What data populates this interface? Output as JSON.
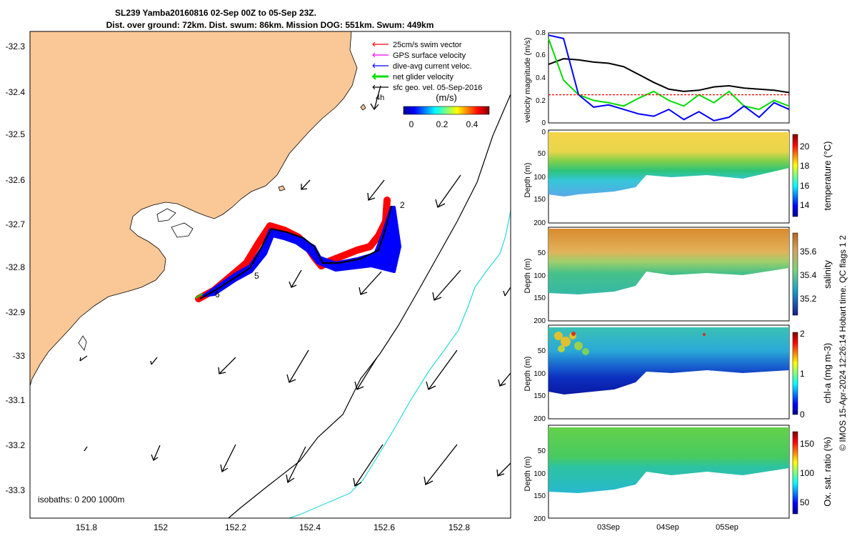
{
  "title": {
    "line1": "SL239 Yamba20160816 02-Sep 00Z to 05-Sep 23Z.",
    "line2": "Dist. over ground: 72km. Dist. swum: 86km. Mission DOG: 551km. Swum: 449km"
  },
  "map": {
    "legend": [
      {
        "label": "25cm/s swim vector",
        "color": "#ff0000"
      },
      {
        "label": "GPS surface velocity",
        "color": "#ff00ff"
      },
      {
        "label": "dive-avg current veloc.",
        "color": "#0000ff"
      },
      {
        "label": "net glider velocity",
        "color": "#00ff00"
      },
      {
        "label": "sfc geo. vel. 05-Sep-2016",
        "color": "#000000"
      }
    ],
    "colorbar": {
      "title": "(m/s)",
      "ticks": [
        "0",
        "0.2",
        "0.4"
      ]
    },
    "hour_label": "4h",
    "isobaths_label": "isobaths: 0   200  1000m",
    "x_ticks": [
      "151.8",
      "152",
      "152.2",
      "152.4",
      "152.6",
      "152.8"
    ],
    "y_ticks": [
      "-32.3",
      "-32.4",
      "-32.5",
      "-32.6",
      "-32.7",
      "-32.8",
      "-32.9",
      "-33",
      "-33.1",
      "-33.2",
      "-33.3"
    ],
    "track_labels": [
      "2",
      "5",
      "6"
    ],
    "land_color": "#fac896"
  },
  "velocity_panel": {
    "ylabel": "velocity magnitude (m/s)",
    "y_ticks": [
      "0",
      "0.2",
      "0.4",
      "0.6",
      "0.8"
    ]
  },
  "sections": [
    {
      "name": "temperature",
      "cb_label": "temperature (°C)",
      "cb_ticks": [
        "14",
        "16",
        "18",
        "20"
      ]
    },
    {
      "name": "salinity",
      "cb_label": "salinity",
      "cb_ticks": [
        "35.2",
        "35.4",
        "35.6"
      ]
    },
    {
      "name": "chla",
      "cb_label": "chl-a (mg m-3)",
      "cb_ticks": [
        "0",
        "1",
        "2"
      ]
    },
    {
      "name": "oxygen",
      "cb_label": "Ox. sat. ratio (%)",
      "cb_ticks": [
        "50",
        "100",
        "150"
      ]
    }
  ],
  "depth_label": "Depth (m)",
  "depth_ticks": [
    "50",
    "100",
    "150",
    "200"
  ],
  "depth_top_tick": "0",
  "x_date_ticks": [
    "03Sep",
    "04Sep",
    "05Sep"
  ],
  "credit": "© IMOS 15-Apr-2024 12:26:14 Hobart time. QC flags 1  2",
  "chart_data": {
    "type": "line",
    "title": "",
    "xlabel": "",
    "ylabel": "velocity magnitude (m/s)",
    "ylim": [
      0,
      0.8
    ],
    "x": [
      "02-Sep 00Z",
      "02-Sep 06Z",
      "02-Sep 12Z",
      "02-Sep 18Z",
      "03-Sep 00Z",
      "03-Sep 06Z",
      "03-Sep 12Z",
      "03-Sep 18Z",
      "04-Sep 00Z",
      "04-Sep 06Z",
      "04-Sep 12Z",
      "04-Sep 18Z",
      "05-Sep 00Z",
      "05-Sep 06Z",
      "05-Sep 12Z",
      "05-Sep 18Z",
      "05-Sep 23Z"
    ],
    "series": [
      {
        "color": "#000000",
        "values": [
          0.52,
          0.57,
          0.56,
          0.54,
          0.53,
          0.5,
          0.43,
          0.36,
          0.3,
          0.28,
          0.29,
          0.32,
          0.33,
          0.31,
          0.3,
          0.29,
          0.27
        ]
      },
      {
        "color": "#00dd00",
        "values": [
          0.75,
          0.38,
          0.25,
          0.2,
          0.18,
          0.15,
          0.22,
          0.28,
          0.2,
          0.15,
          0.25,
          0.18,
          0.28,
          0.15,
          0.12,
          0.2,
          0.15
        ]
      },
      {
        "color": "#0000ff",
        "values": [
          0.78,
          0.75,
          0.25,
          0.14,
          0.16,
          0.12,
          0.08,
          0.06,
          0.12,
          0.03,
          0.1,
          0.02,
          0.05,
          0.15,
          0.05,
          0.18,
          0.12
        ]
      },
      {
        "color": "#ff0000",
        "values": [
          0.25,
          0.25,
          0.25,
          0.25,
          0.25,
          0.25,
          0.25,
          0.25,
          0.25,
          0.25,
          0.25,
          0.25,
          0.25,
          0.25,
          0.25,
          0.25,
          0.25
        ]
      }
    ]
  }
}
